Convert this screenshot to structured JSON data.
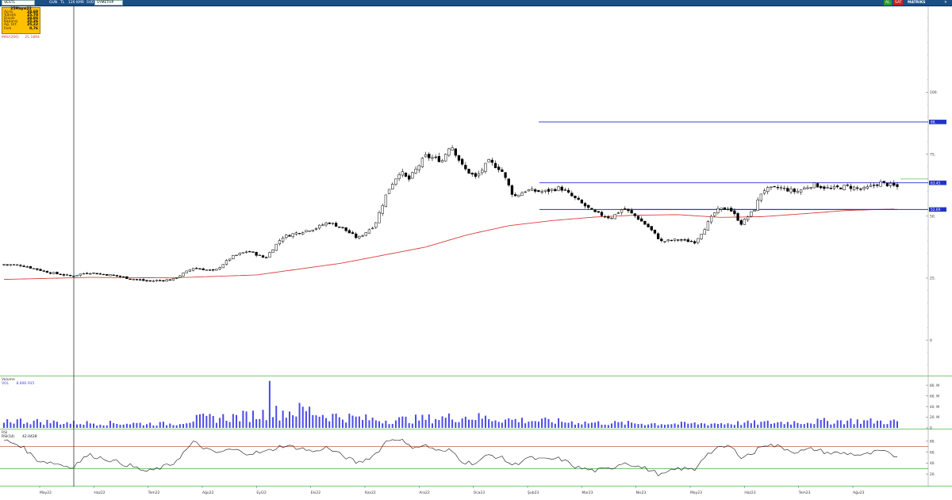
{
  "toolbar": {
    "symbol": "VESTL",
    "period": "GUN",
    "currency": "TL",
    "bars": "126",
    "opt1": "KMR",
    "opt2": "SVD",
    "mode": "SYMETHP",
    "btn_al": "AL",
    "btn_sat": "SAT",
    "account": "MATRIKS"
  },
  "info_box": {
    "date": "25Mayıs22",
    "rows": [
      {
        "label": "Açılış",
        "value": "24,68"
      },
      {
        "label": "Yüksek",
        "value": "25,70"
      },
      {
        "label": "Düşük",
        "value": "24,66"
      },
      {
        "label": "Kapanış",
        "value": "25,26"
      },
      {
        "label": "Ağ. Ort",
        "value": "25,22"
      },
      {
        "label": "Fark",
        "value": "0,76"
      }
    ]
  },
  "ma_legend": {
    "label": "MAV(200)",
    "value": "25.1894"
  },
  "volume_legend": {
    "title": "Volume",
    "label": "VOL",
    "value": "8.896.935"
  },
  "rsi_legend": {
    "title": "RSI",
    "label": "RSI(14)",
    "value": "42.0428"
  },
  "colors": {
    "toolbar": "#1b4f86",
    "ma": "#e03c3c",
    "hline": "#2233cc",
    "volume": "#4a4ae8",
    "rsi": "#111111",
    "rsi_upper": "#b04a2a",
    "rsi_lower": "#2a9a2a",
    "panel_border": "#7ec87e",
    "info_box": "#ffc000",
    "btn_al": "#2e9a2e",
    "btn_sat": "#c81e1e"
  },
  "chart_data": {
    "type": "candlestick",
    "price_axis": {
      "ticks": [
        0,
        25,
        50,
        75,
        100
      ],
      "tick_labels": [
        "0",
        "25.",
        "50.",
        "75.",
        "100."
      ],
      "range": [
        -14,
        134
      ]
    },
    "horizontal_levels": [
      {
        "value": 88,
        "label": "88."
      },
      {
        "value": 63.45,
        "label": "63.45"
      },
      {
        "value": 52.69,
        "label": "52.69"
      }
    ],
    "x_labels": [
      "May22",
      "Haz22",
      "Tem22",
      "Ağu22",
      "Eyl22",
      "Eki22",
      "Kas22",
      "Ara22",
      "Oca23",
      "Şub23",
      "Mar23",
      "Nis23",
      "May23",
      "Haz23",
      "Tem23",
      "Ağu23"
    ],
    "price_path": [
      {
        "t": 0,
        "p": 30.5
      },
      {
        "t": 0.02,
        "p": 30.2
      },
      {
        "t": 0.04,
        "p": 28.5
      },
      {
        "t": 0.055,
        "p": 27.2
      },
      {
        "t": 0.08,
        "p": 25.8
      },
      {
        "t": 0.1,
        "p": 27.3
      },
      {
        "t": 0.13,
        "p": 26.1
      },
      {
        "t": 0.15,
        "p": 24.8
      },
      {
        "t": 0.17,
        "p": 23.8
      },
      {
        "t": 0.2,
        "p": 24.4
      },
      {
        "t": 0.225,
        "p": 29.2
      },
      {
        "t": 0.25,
        "p": 27.8
      },
      {
        "t": 0.27,
        "p": 33.5
      },
      {
        "t": 0.29,
        "p": 36.0
      },
      {
        "t": 0.31,
        "p": 33.0
      },
      {
        "t": 0.33,
        "p": 41.5
      },
      {
        "t": 0.35,
        "p": 43.5
      },
      {
        "t": 0.37,
        "p": 45.2
      },
      {
        "t": 0.385,
        "p": 47.6
      },
      {
        "t": 0.4,
        "p": 45.5
      },
      {
        "t": 0.42,
        "p": 41.0
      },
      {
        "t": 0.44,
        "p": 46.5
      },
      {
        "t": 0.455,
        "p": 60.0
      },
      {
        "t": 0.47,
        "p": 68.2
      },
      {
        "t": 0.48,
        "p": 64.5
      },
      {
        "t": 0.5,
        "p": 74.2
      },
      {
        "t": 0.52,
        "p": 72.5
      },
      {
        "t": 0.53,
        "p": 79.2
      },
      {
        "t": 0.545,
        "p": 69.5
      },
      {
        "t": 0.56,
        "p": 65.5
      },
      {
        "t": 0.575,
        "p": 72.0
      },
      {
        "t": 0.59,
        "p": 68.8
      },
      {
        "t": 0.605,
        "p": 57.8
      },
      {
        "t": 0.62,
        "p": 60.5
      },
      {
        "t": 0.64,
        "p": 59.8
      },
      {
        "t": 0.66,
        "p": 61.5
      },
      {
        "t": 0.68,
        "p": 56.5
      },
      {
        "t": 0.7,
        "p": 51.5
      },
      {
        "t": 0.72,
        "p": 49.3
      },
      {
        "t": 0.735,
        "p": 53.2
      },
      {
        "t": 0.75,
        "p": 49.8
      },
      {
        "t": 0.765,
        "p": 45.5
      },
      {
        "t": 0.78,
        "p": 39.8
      },
      {
        "t": 0.8,
        "p": 40.5
      },
      {
        "t": 0.82,
        "p": 39.6
      },
      {
        "t": 0.83,
        "p": 44.5
      },
      {
        "t": 0.845,
        "p": 52.2
      },
      {
        "t": 0.86,
        "p": 53.5
      },
      {
        "t": 0.875,
        "p": 47.0
      },
      {
        "t": 0.89,
        "p": 52.5
      },
      {
        "t": 0.9,
        "p": 60.5
      },
      {
        "t": 0.92,
        "p": 61.5
      },
      {
        "t": 0.94,
        "p": 59.8
      },
      {
        "t": 0.96,
        "p": 62.8
      },
      {
        "t": 0.98,
        "p": 61.0
      },
      {
        "t": 1.0,
        "p": 62.0
      },
      {
        "t": 1.02,
        "p": 60.8
      },
      {
        "t": 1.04,
        "p": 63.5
      },
      {
        "t": 1.06,
        "p": 61.8
      }
    ],
    "ma_path": [
      {
        "t": 0,
        "p": 24.5
      },
      {
        "t": 0.1,
        "p": 25.3
      },
      {
        "t": 0.2,
        "p": 25.1
      },
      {
        "t": 0.3,
        "p": 26.3
      },
      {
        "t": 0.4,
        "p": 31.0
      },
      {
        "t": 0.5,
        "p": 37.5
      },
      {
        "t": 0.55,
        "p": 42.5
      },
      {
        "t": 0.6,
        "p": 46.2
      },
      {
        "t": 0.65,
        "p": 48.2
      },
      {
        "t": 0.7,
        "p": 49.6
      },
      {
        "t": 0.75,
        "p": 50.4
      },
      {
        "t": 0.8,
        "p": 50.6
      },
      {
        "t": 0.85,
        "p": 49.5
      },
      {
        "t": 0.9,
        "p": 49.8
      },
      {
        "t": 0.95,
        "p": 51.0
      },
      {
        "t": 1.0,
        "p": 52.3
      },
      {
        "t": 1.06,
        "p": 52.9
      }
    ],
    "volume": {
      "axis_ticks": [
        0,
        20,
        40,
        60,
        80
      ],
      "tick_labels": [
        "0",
        "20. M",
        "40. M",
        "60. M",
        "80. M"
      ],
      "range": [
        0,
        95
      ],
      "profile": [
        {
          "t": 0,
          "v": 15
        },
        {
          "t": 0.08,
          "v": 10
        },
        {
          "t": 0.2,
          "v": 8
        },
        {
          "t": 0.23,
          "v": 18
        },
        {
          "t": 0.28,
          "v": 22
        },
        {
          "t": 0.32,
          "v": 30
        },
        {
          "t": 0.36,
          "v": 35
        },
        {
          "t": 0.38,
          "v": 25
        },
        {
          "t": 0.45,
          "v": 15
        },
        {
          "t": 0.5,
          "v": 18
        },
        {
          "t": 0.55,
          "v": 22
        },
        {
          "t": 0.6,
          "v": 16
        },
        {
          "t": 0.7,
          "v": 10
        },
        {
          "t": 0.8,
          "v": 8
        },
        {
          "t": 0.9,
          "v": 10
        },
        {
          "t": 1.0,
          "v": 14
        },
        {
          "t": 1.06,
          "v": 12
        }
      ],
      "spike": {
        "t": 0.315,
        "v": 88
      }
    },
    "rsi": {
      "axis_ticks": [
        20,
        40,
        60,
        80
      ],
      "tick_labels": [
        "20.",
        "40.",
        "60.",
        "80."
      ],
      "range": [
        0,
        100
      ],
      "upper": 70,
      "lower": 30,
      "path": [
        {
          "t": 0,
          "v": 82
        },
        {
          "t": 0.02,
          "v": 72
        },
        {
          "t": 0.04,
          "v": 45
        },
        {
          "t": 0.06,
          "v": 40
        },
        {
          "t": 0.08,
          "v": 32
        },
        {
          "t": 0.1,
          "v": 55
        },
        {
          "t": 0.12,
          "v": 48
        },
        {
          "t": 0.15,
          "v": 35
        },
        {
          "t": 0.17,
          "v": 24
        },
        {
          "t": 0.2,
          "v": 38
        },
        {
          "t": 0.225,
          "v": 78
        },
        {
          "t": 0.25,
          "v": 58
        },
        {
          "t": 0.27,
          "v": 65
        },
        {
          "t": 0.29,
          "v": 58
        },
        {
          "t": 0.31,
          "v": 60
        },
        {
          "t": 0.33,
          "v": 72
        },
        {
          "t": 0.35,
          "v": 68
        },
        {
          "t": 0.37,
          "v": 60
        },
        {
          "t": 0.38,
          "v": 70
        },
        {
          "t": 0.4,
          "v": 55
        },
        {
          "t": 0.42,
          "v": 40
        },
        {
          "t": 0.44,
          "v": 55
        },
        {
          "t": 0.455,
          "v": 82
        },
        {
          "t": 0.47,
          "v": 85
        },
        {
          "t": 0.48,
          "v": 70
        },
        {
          "t": 0.5,
          "v": 72
        },
        {
          "t": 0.52,
          "v": 60
        },
        {
          "t": 0.53,
          "v": 64
        },
        {
          "t": 0.545,
          "v": 42
        },
        {
          "t": 0.56,
          "v": 40
        },
        {
          "t": 0.575,
          "v": 55
        },
        {
          "t": 0.59,
          "v": 50
        },
        {
          "t": 0.605,
          "v": 35
        },
        {
          "t": 0.62,
          "v": 50
        },
        {
          "t": 0.64,
          "v": 46
        },
        {
          "t": 0.66,
          "v": 48
        },
        {
          "t": 0.68,
          "v": 32
        },
        {
          "t": 0.7,
          "v": 26
        },
        {
          "t": 0.72,
          "v": 30
        },
        {
          "t": 0.735,
          "v": 42
        },
        {
          "t": 0.75,
          "v": 35
        },
        {
          "t": 0.765,
          "v": 28
        },
        {
          "t": 0.78,
          "v": 18
        },
        {
          "t": 0.8,
          "v": 30
        },
        {
          "t": 0.82,
          "v": 28
        },
        {
          "t": 0.83,
          "v": 52
        },
        {
          "t": 0.845,
          "v": 65
        },
        {
          "t": 0.86,
          "v": 72
        },
        {
          "t": 0.875,
          "v": 52
        },
        {
          "t": 0.89,
          "v": 58
        },
        {
          "t": 0.9,
          "v": 75
        },
        {
          "t": 0.92,
          "v": 70
        },
        {
          "t": 0.94,
          "v": 60
        },
        {
          "t": 0.96,
          "v": 66
        },
        {
          "t": 0.98,
          "v": 58
        },
        {
          "t": 1.0,
          "v": 58
        },
        {
          "t": 1.02,
          "v": 54
        },
        {
          "t": 1.04,
          "v": 62
        },
        {
          "t": 1.06,
          "v": 52
        }
      ]
    }
  }
}
